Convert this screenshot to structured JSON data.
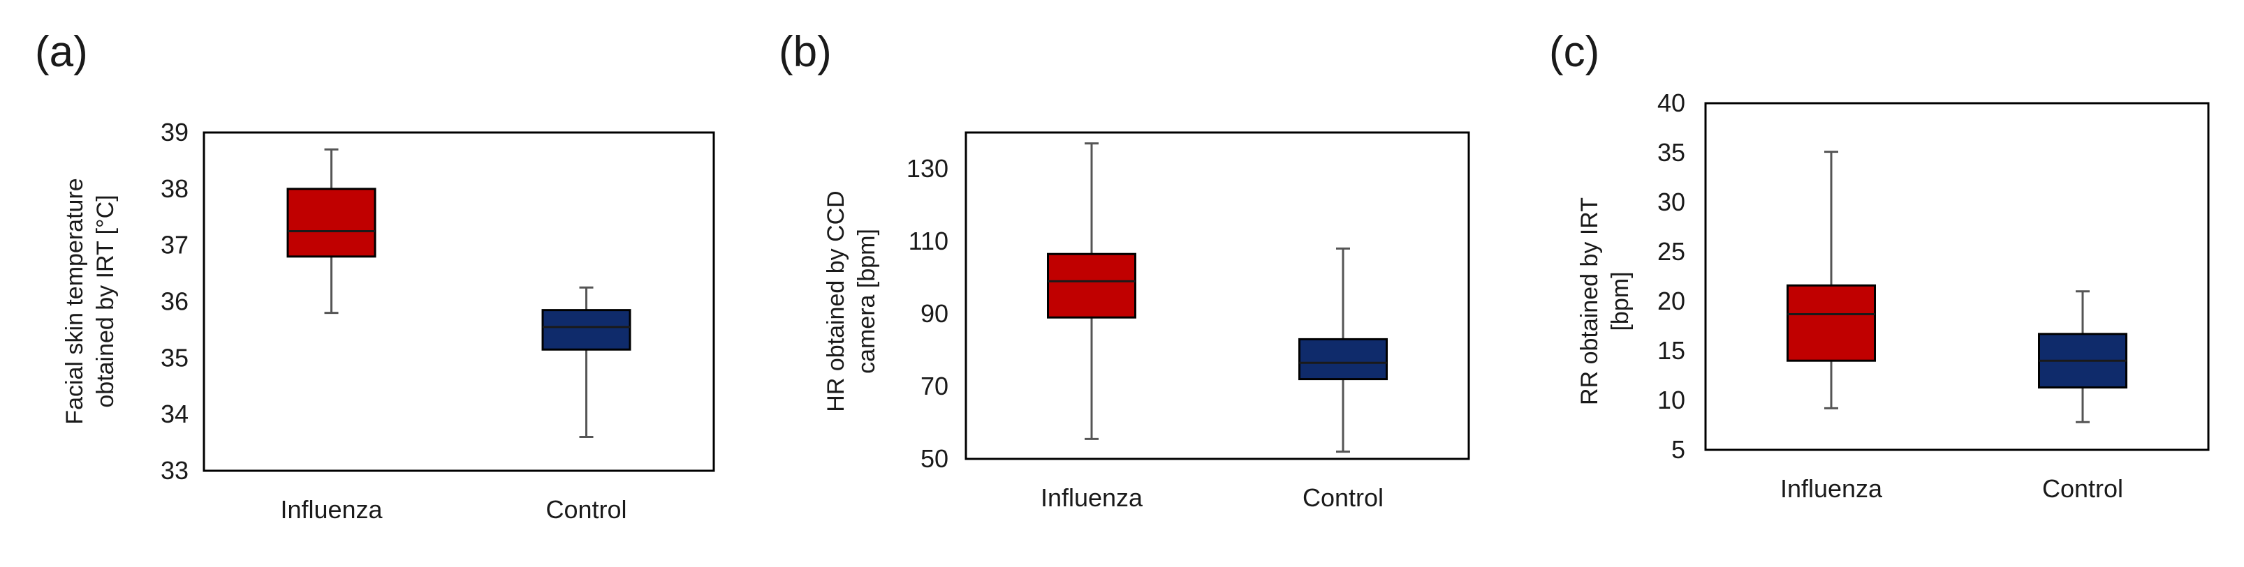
{
  "figure_title": "",
  "colors": {
    "influenza_fill": "#c00000",
    "control_fill": "#0f2b6b",
    "frame": "#000000",
    "whisker": "#555555",
    "median": "#1a1a1a"
  },
  "chart_data": [
    {
      "type": "box",
      "panel_label": "(a)",
      "ylabel_lines": [
        "Facial skin temperature",
        "obtained by IRT [°C]"
      ],
      "categories": [
        "Influenza",
        "Control"
      ],
      "ylim": [
        33,
        39
      ],
      "yticks": [
        33,
        34,
        35,
        36,
        37,
        38,
        39
      ],
      "boxes": [
        {
          "name": "Influenza",
          "min": 35.8,
          "q1": 36.8,
          "median": 37.25,
          "q3": 38.0,
          "max": 38.7
        },
        {
          "name": "Control",
          "min": 33.6,
          "q1": 35.15,
          "median": 35.55,
          "q3": 35.85,
          "max": 36.25
        }
      ]
    },
    {
      "type": "box",
      "panel_label": "(b)",
      "ylabel_lines": [
        "HR  obtained by CCD",
        "camera [bpm]"
      ],
      "categories": [
        "Influenza",
        "Control"
      ],
      "ylim": [
        50,
        140
      ],
      "yticks": [
        50,
        70,
        90,
        110,
        130
      ],
      "boxes": [
        {
          "name": "Influenza",
          "min": 55.5,
          "q1": 89,
          "median": 99,
          "q3": 106.5,
          "max": 137
        },
        {
          "name": "Control",
          "min": 52,
          "q1": 72,
          "median": 76.5,
          "q3": 83,
          "max": 108
        }
      ]
    },
    {
      "type": "box",
      "panel_label": "(c)",
      "ylabel_lines": [
        "RR obtained by IRT",
        "[bpm]"
      ],
      "categories": [
        "Influenza",
        "Control"
      ],
      "ylim": [
        5,
        40
      ],
      "yticks": [
        5,
        10,
        15,
        20,
        25,
        30,
        35,
        40
      ],
      "boxes": [
        {
          "name": "Influenza",
          "min": 9.2,
          "q1": 14,
          "median": 18.7,
          "q3": 21.6,
          "max": 35.1
        },
        {
          "name": "Control",
          "min": 7.8,
          "q1": 11.3,
          "median": 14,
          "q3": 16.7,
          "max": 21
        }
      ]
    }
  ]
}
